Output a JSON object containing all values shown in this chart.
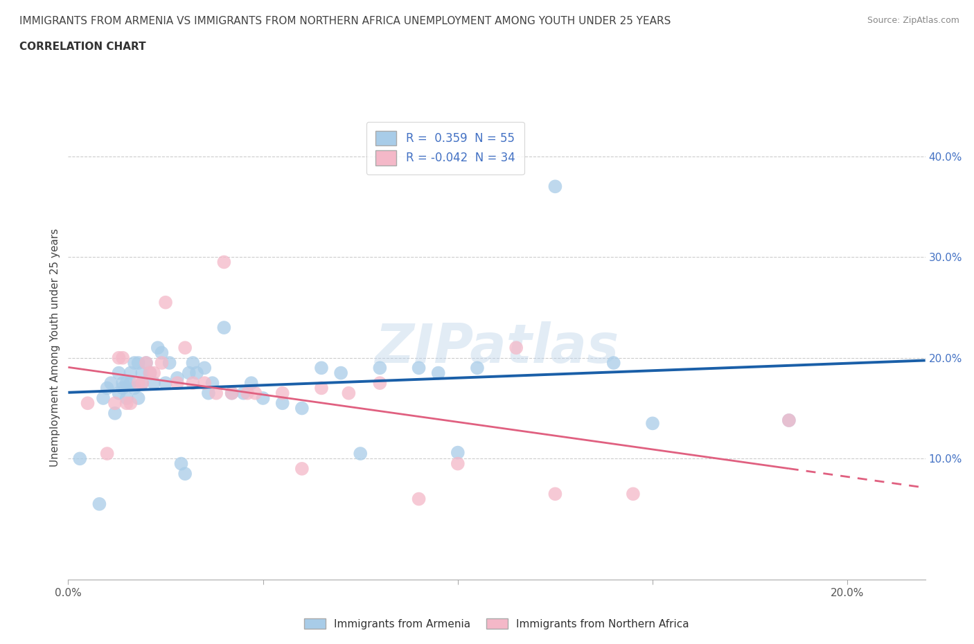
{
  "title_line1": "IMMIGRANTS FROM ARMENIA VS IMMIGRANTS FROM NORTHERN AFRICA UNEMPLOYMENT AMONG YOUTH UNDER 25 YEARS",
  "title_line2": "CORRELATION CHART",
  "source": "Source: ZipAtlas.com",
  "ylabel": "Unemployment Among Youth under 25 years",
  "xlim": [
    0.0,
    0.22
  ],
  "ylim": [
    -0.02,
    0.44
  ],
  "xticks": [
    0.0,
    0.05,
    0.1,
    0.15,
    0.2
  ],
  "yticks_right": [
    0.1,
    0.2,
    0.3,
    0.4
  ],
  "ytick_labels_right": [
    "10.0%",
    "20.0%",
    "30.0%",
    "40.0%"
  ],
  "xtick_labels": [
    "0.0%",
    "",
    "",
    "",
    "20.0%"
  ],
  "color_armenia": "#a8cce8",
  "color_n_africa": "#f4b8c8",
  "line_color_armenia": "#1a5fa8",
  "line_color_n_africa": "#e06080",
  "R_armenia": 0.359,
  "N_armenia": 55,
  "R_n_africa": -0.042,
  "N_n_africa": 34,
  "watermark": "ZIPatlas",
  "legend_label_armenia": "Immigrants from Armenia",
  "legend_label_n_africa": "Immigrants from Northern Africa",
  "armenia_x": [
    0.003,
    0.008,
    0.009,
    0.01,
    0.011,
    0.012,
    0.013,
    0.013,
    0.014,
    0.014,
    0.015,
    0.015,
    0.016,
    0.016,
    0.017,
    0.017,
    0.018,
    0.018,
    0.019,
    0.019,
    0.02,
    0.021,
    0.022,
    0.023,
    0.024,
    0.025,
    0.026,
    0.028,
    0.029,
    0.03,
    0.031,
    0.032,
    0.033,
    0.035,
    0.036,
    0.037,
    0.04,
    0.042,
    0.045,
    0.047,
    0.05,
    0.055,
    0.06,
    0.065,
    0.07,
    0.075,
    0.08,
    0.09,
    0.095,
    0.1,
    0.105,
    0.125,
    0.14,
    0.15,
    0.185
  ],
  "armenia_y": [
    0.1,
    0.055,
    0.16,
    0.17,
    0.175,
    0.145,
    0.165,
    0.185,
    0.175,
    0.17,
    0.175,
    0.16,
    0.185,
    0.175,
    0.195,
    0.17,
    0.195,
    0.16,
    0.185,
    0.175,
    0.195,
    0.185,
    0.175,
    0.21,
    0.205,
    0.175,
    0.195,
    0.18,
    0.095,
    0.085,
    0.185,
    0.195,
    0.185,
    0.19,
    0.165,
    0.175,
    0.23,
    0.165,
    0.165,
    0.175,
    0.16,
    0.155,
    0.15,
    0.19,
    0.185,
    0.105,
    0.19,
    0.19,
    0.185,
    0.106,
    0.19,
    0.37,
    0.195,
    0.135,
    0.138
  ],
  "n_africa_x": [
    0.005,
    0.01,
    0.012,
    0.013,
    0.014,
    0.015,
    0.016,
    0.018,
    0.019,
    0.02,
    0.021,
    0.022,
    0.024,
    0.025,
    0.028,
    0.03,
    0.032,
    0.035,
    0.038,
    0.04,
    0.042,
    0.046,
    0.048,
    0.055,
    0.06,
    0.065,
    0.072,
    0.08,
    0.09,
    0.1,
    0.115,
    0.125,
    0.145,
    0.185
  ],
  "n_africa_y": [
    0.155,
    0.105,
    0.155,
    0.2,
    0.2,
    0.155,
    0.155,
    0.175,
    0.175,
    0.195,
    0.185,
    0.185,
    0.195,
    0.255,
    0.175,
    0.21,
    0.175,
    0.175,
    0.165,
    0.295,
    0.165,
    0.165,
    0.165,
    0.165,
    0.09,
    0.17,
    0.165,
    0.175,
    0.06,
    0.095,
    0.21,
    0.065,
    0.065,
    0.138
  ]
}
